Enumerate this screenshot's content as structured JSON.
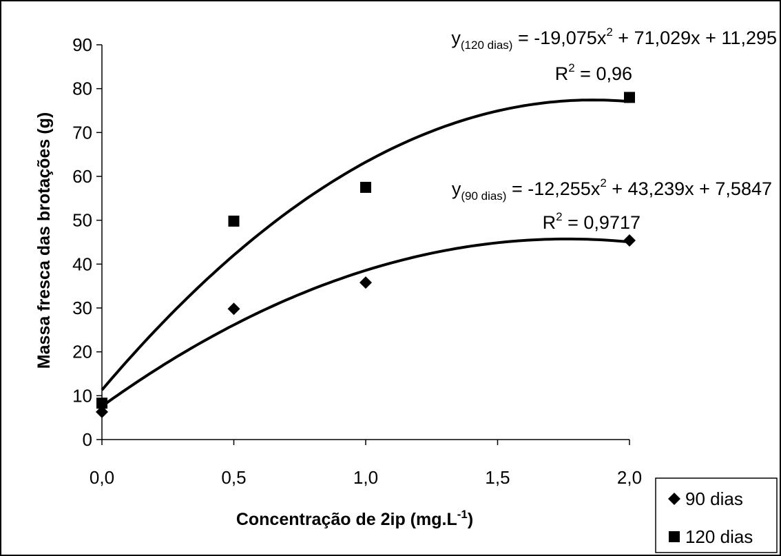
{
  "chart_data": {
    "type": "scatter",
    "xlabel": "Concentração de 2ip (mg.L",
    "xlabel_superscript": "-1",
    "xlabel_close": ")",
    "ylabel": "Massa fresca das brotações (g)",
    "x_ticks": [
      "0,0",
      "0,5",
      "1,0",
      "1,5",
      "2,0"
    ],
    "y_ticks": [
      "0",
      "10",
      "20",
      "30",
      "40",
      "50",
      "60",
      "70",
      "80",
      "90"
    ],
    "xlim": [
      0,
      2
    ],
    "ylim": [
      0,
      90
    ],
    "series": [
      {
        "name": "90 dias",
        "marker": "diamond",
        "x": [
          0,
          0.5,
          1.0,
          2.0
        ],
        "y": [
          6.3,
          29.8,
          35.8,
          45.4
        ],
        "trend": {
          "a": -12.255,
          "b": 43.239,
          "c": 7.5847
        },
        "equation": {
          "y": "y",
          "sub": "(90 dias)",
          "rhs_start": " = -12,255x",
          "pow": "2",
          "rhs_end": " + 43,239x + 7,5847",
          "r2_label": "R",
          "r2_pow": "2",
          "r2_value": " = 0,9717"
        }
      },
      {
        "name": "120 dias",
        "marker": "square",
        "x": [
          0,
          0.5,
          1.0,
          2.0
        ],
        "y": [
          8.3,
          49.8,
          57.5,
          78.0
        ],
        "trend": {
          "a": -19.075,
          "b": 71.029,
          "c": 11.295
        },
        "equation": {
          "y": "y",
          "sub": "(120 dias)",
          "rhs_start": " = -19,075x",
          "pow": "2",
          "rhs_end": " + 71,029x + 11,295",
          "r2_label": "R",
          "r2_pow": "2",
          "r2_value": " = 0,96"
        }
      }
    ],
    "legend": [
      "90 dias",
      "120 dias"
    ],
    "legend_position": "bottom-right",
    "grid": false,
    "colors": {
      "marker": "#000000",
      "line": "#000000",
      "background": "#ffffff"
    }
  }
}
